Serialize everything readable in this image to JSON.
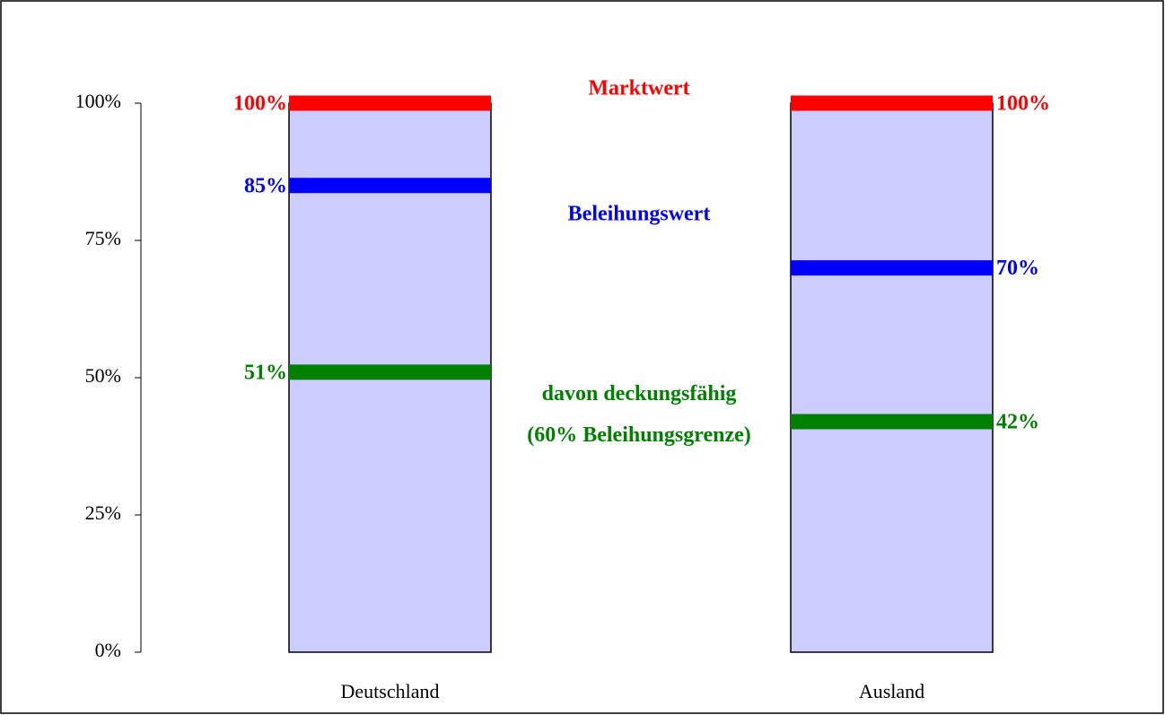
{
  "chart_data": {
    "type": "bar",
    "categories": [
      "Deutschland",
      "Ausland"
    ],
    "values": [
      100,
      100
    ],
    "color": "#ccccff",
    "ylim": [
      0,
      100
    ],
    "yticks": [
      {
        "value": 0,
        "label": "0%"
      },
      {
        "value": 25,
        "label": "25%"
      },
      {
        "value": 50,
        "label": "50%"
      },
      {
        "value": 75,
        "label": "75%"
      },
      {
        "value": 100,
        "label": "100%"
      }
    ],
    "series": [
      {
        "name": "Marktwert",
        "color": "#ff0000",
        "values": [
          100,
          100
        ],
        "value_labels": [
          "100%",
          "100%"
        ]
      },
      {
        "name": "Beleihungswert",
        "color": "#0000ff",
        "values": [
          85,
          70
        ],
        "value_labels": [
          "85%",
          "70%"
        ]
      },
      {
        "name": "davon deckungsfähig (60% Beleihungsgrenze)",
        "color": "#008000",
        "values": [
          51,
          42
        ],
        "value_labels": [
          "51%",
          "42%"
        ]
      }
    ]
  }
}
